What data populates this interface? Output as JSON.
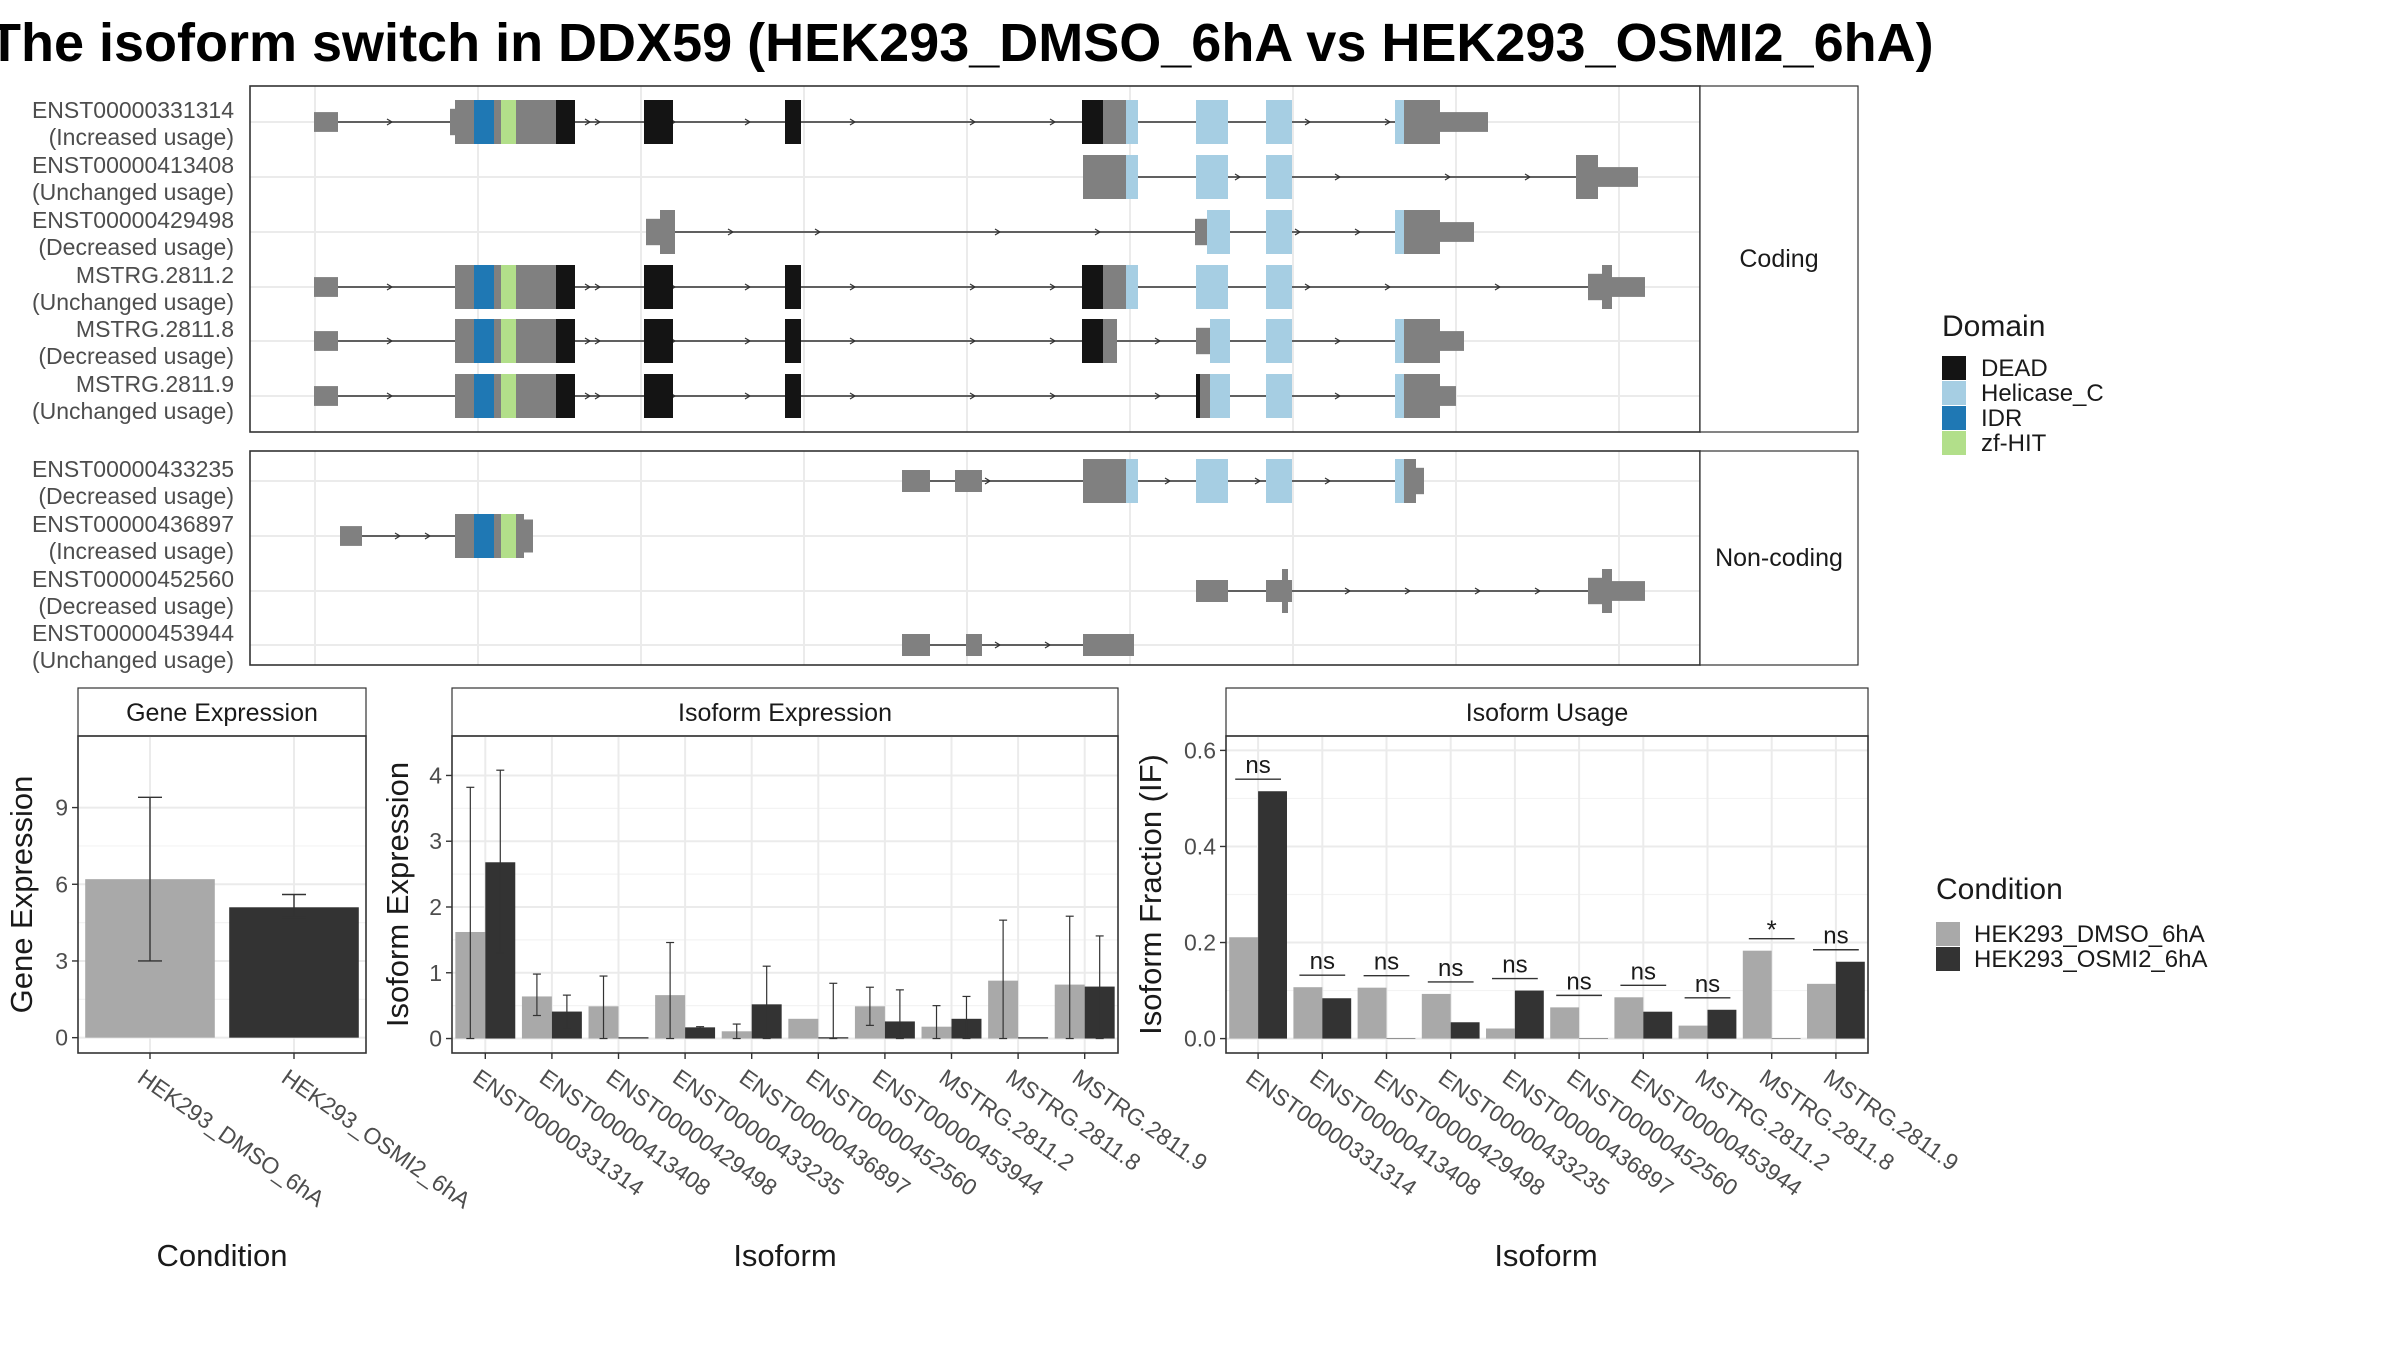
{
  "title": "The isoform switch in DDX59 (HEK293_DMSO_6hA vs HEK293_OSMI2_6hA)",
  "colors": {
    "exon": "#808080",
    "DEAD": "#141414",
    "Helicase_C": "#a6cee3",
    "IDR": "#1f78b4",
    "zf-HIT": "#b2df8a",
    "HEK293_DMSO_6hA": "#a9a9a9",
    "HEK293_OSMI2_6hA": "#333333"
  },
  "structure": {
    "groups": [
      {
        "label": "Coding",
        "isoforms": [
          {
            "id": "ENST00000331314",
            "status": "(Increased usage)"
          },
          {
            "id": "ENST00000413408",
            "status": "(Unchanged usage)"
          },
          {
            "id": "ENST00000429498",
            "status": "(Decreased usage)"
          },
          {
            "id": "MSTRG.2811.2",
            "status": "(Unchanged usage)"
          },
          {
            "id": "MSTRG.2811.8",
            "status": "(Decreased usage)"
          },
          {
            "id": "MSTRG.2811.9",
            "status": "(Unchanged usage)"
          }
        ]
      },
      {
        "label": "Non-coding",
        "isoforms": [
          {
            "id": "ENST00000433235",
            "status": "(Decreased usage)"
          },
          {
            "id": "ENST00000436897",
            "status": "(Increased usage)"
          },
          {
            "id": "ENST00000452560",
            "status": "(Decreased usage)"
          },
          {
            "id": "ENST00000453944",
            "status": "(Unchanged usage)"
          }
        ]
      }
    ]
  },
  "legend_domain": {
    "title": "Domain",
    "items": [
      {
        "label": "DEAD",
        "color": "#141414"
      },
      {
        "label": "Helicase_C",
        "color": "#a6cee3"
      },
      {
        "label": "IDR",
        "color": "#1f78b4"
      },
      {
        "label": "zf-HIT",
        "color": "#b2df8a"
      }
    ]
  },
  "legend_condition": {
    "title": "Condition",
    "items": [
      {
        "label": "HEK293_DMSO_6hA",
        "color": "#a9a9a9"
      },
      {
        "label": "HEK293_OSMI2_6hA",
        "color": "#333333"
      }
    ]
  },
  "chart_data": [
    {
      "type": "bar",
      "title": "Gene Expression",
      "xlabel": "Condition",
      "ylabel": "Gene Expression",
      "categories": [
        "HEK293_DMSO_6hA",
        "HEK293_OSMI2_6hA"
      ],
      "values": [
        6.2,
        5.1
      ],
      "error_low": [
        3.0,
        4.7
      ],
      "error_high": [
        9.4,
        5.6
      ],
      "ylim": [
        -0.6,
        11.8
      ],
      "yticks": [
        0,
        3,
        6,
        9
      ],
      "grid": true
    },
    {
      "type": "bar",
      "title": "Isoform Expression",
      "xlabel": "Isoform",
      "ylabel": "Isoform Expression",
      "categories": [
        "ENST00000331314",
        "ENST00000413408",
        "ENST00000429498",
        "ENST00000433235",
        "ENST00000436897",
        "ENST00000452560",
        "ENST00000453944",
        "MSTRG.2811.2",
        "MSTRG.2811.8",
        "MSTRG.2811.9"
      ],
      "series": [
        {
          "name": "HEK293_DMSO_6hA",
          "values": [
            1.62,
            0.64,
            0.49,
            0.66,
            0.11,
            0.3,
            0.49,
            0.18,
            0.88,
            0.82
          ],
          "err_low": [
            0.0,
            0.35,
            0.0,
            0.0,
            0.0,
            0.0,
            0.2,
            0.0,
            0.0,
            0.0
          ],
          "err_high": [
            3.82,
            0.98,
            0.95,
            1.46,
            0.22,
            0.0,
            0.78,
            0.5,
            1.8,
            1.86
          ]
        },
        {
          "name": "HEK293_OSMI2_6hA",
          "values": [
            2.68,
            0.41,
            0.02,
            0.17,
            0.52,
            0.02,
            0.26,
            0.3,
            0.02,
            0.79
          ],
          "err_low": [
            1.3,
            0.15,
            0.0,
            0.15,
            0.0,
            0.0,
            0.0,
            0.0,
            0.0,
            0.0
          ],
          "err_high": [
            4.08,
            0.66,
            0.0,
            0.18,
            1.1,
            0.84,
            0.74,
            0.64,
            0.0,
            1.56
          ]
        }
      ],
      "ylim": [
        -0.22,
        4.6
      ],
      "yticks": [
        0,
        1,
        2,
        3,
        4
      ],
      "grid": true
    },
    {
      "type": "bar",
      "title": "Isoform Usage",
      "xlabel": "Isoform",
      "ylabel": "Isoform Fraction (IF)",
      "categories": [
        "ENST00000331314",
        "ENST00000413408",
        "ENST00000429498",
        "ENST00000433235",
        "ENST00000436897",
        "ENST00000452560",
        "ENST00000453944",
        "MSTRG.2811.2",
        "MSTRG.2811.8",
        "MSTRG.2811.9"
      ],
      "series": [
        {
          "name": "HEK293_DMSO_6hA",
          "values": [
            0.211,
            0.107,
            0.106,
            0.093,
            0.021,
            0.065,
            0.086,
            0.027,
            0.183,
            0.114
          ]
        },
        {
          "name": "HEK293_OSMI2_6hA",
          "values": [
            0.515,
            0.084,
            0.001,
            0.034,
            0.1,
            0.001,
            0.056,
            0.06,
            0.001,
            0.16
          ]
        }
      ],
      "annotations": [
        "ns",
        "ns",
        "ns",
        "ns",
        "ns",
        "ns",
        "ns",
        "ns",
        "*",
        "ns"
      ],
      "ylim": [
        -0.03,
        0.63
      ],
      "yticks": [
        0.0,
        0.2,
        0.4,
        0.6
      ],
      "ytick_labels": [
        "0.0",
        "0.2",
        "0.4",
        "0.6"
      ],
      "grid": true
    }
  ]
}
